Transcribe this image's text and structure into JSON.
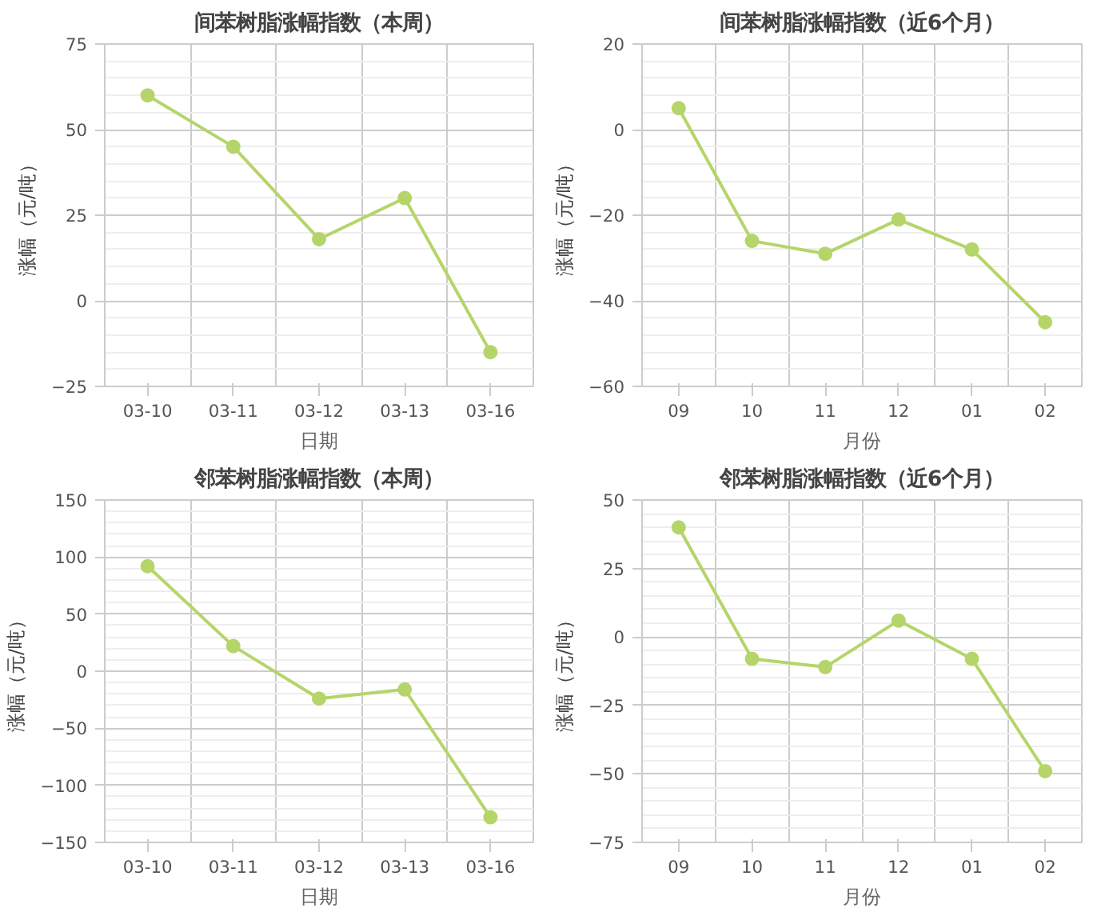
{
  "chart_data": [
    {
      "type": "line",
      "title": "间苯树脂涨幅指数（本周）",
      "xlabel": "日期",
      "ylabel": "涨幅（元/吨）",
      "categories": [
        "03-10",
        "03-11",
        "03-12",
        "03-13",
        "03-16"
      ],
      "series": [
        {
          "color": "#b5d56a",
          "values": [
            60,
            45,
            18,
            30,
            -15
          ]
        }
      ],
      "ylim": [
        -25,
        75
      ],
      "yticks": [
        -25,
        0,
        25,
        50,
        75
      ],
      "grid": true,
      "marker": "circle",
      "line_style": "solid"
    },
    {
      "type": "line",
      "title": "间苯树脂涨幅指数（近6个月）",
      "xlabel": "月份",
      "ylabel": "涨幅（元/吨）",
      "categories": [
        "09",
        "10",
        "11",
        "12",
        "01",
        "02"
      ],
      "series": [
        {
          "color": "#b5d56a",
          "values": [
            5,
            -26,
            -29,
            -21,
            -28,
            -45
          ]
        }
      ],
      "ylim": [
        -60,
        20
      ],
      "yticks": [
        -60,
        -40,
        -20,
        0,
        20
      ],
      "grid": true,
      "marker": "circle",
      "line_style": "solid"
    },
    {
      "type": "line",
      "title": "邻苯树脂涨幅指数（本周）",
      "xlabel": "日期",
      "ylabel": "涨幅（元/吨）",
      "categories": [
        "03-10",
        "03-11",
        "03-12",
        "03-13",
        "03-16"
      ],
      "series": [
        {
          "color": "#b5d56a",
          "values": [
            92,
            22,
            -24,
            -16,
            -128
          ]
        }
      ],
      "ylim": [
        -150,
        150
      ],
      "yticks": [
        -150,
        -100,
        -50,
        0,
        50,
        100,
        150
      ],
      "grid": true,
      "marker": "circle",
      "line_style": "solid"
    },
    {
      "type": "line",
      "title": "邻苯树脂涨幅指数（近6个月）",
      "xlabel": "月份",
      "ylabel": "涨幅（元/吨）",
      "categories": [
        "09",
        "10",
        "11",
        "12",
        "01",
        "02"
      ],
      "series": [
        {
          "color": "#b5d56a",
          "values": [
            40,
            -8,
            -11,
            6,
            -8,
            -49
          ]
        }
      ],
      "ylim": [
        -75,
        50
      ],
      "yticks": [
        -75,
        -50,
        -25,
        0,
        25,
        50
      ],
      "grid": true,
      "marker": "circle",
      "line_style": "solid"
    }
  ]
}
